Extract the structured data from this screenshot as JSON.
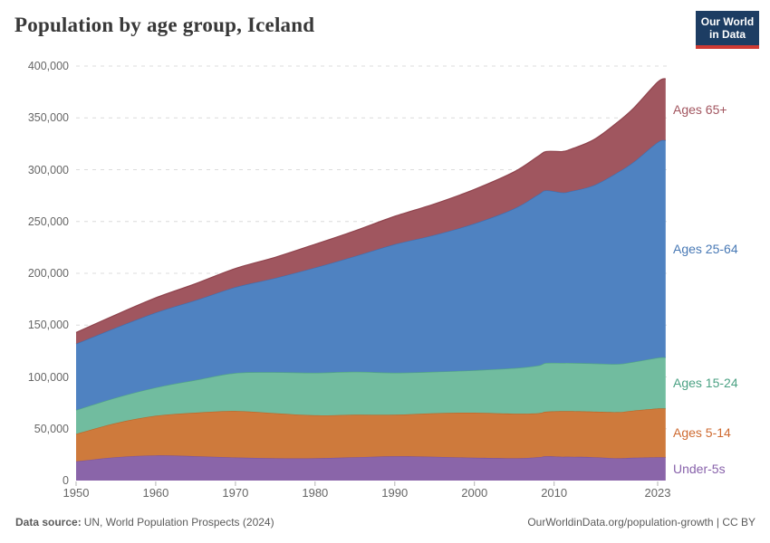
{
  "header": {
    "title": "Population by age group, Iceland",
    "logo": {
      "line1": "Our World",
      "line2": "in Data",
      "bg_color": "#1d3d63",
      "bar_color": "#cf3a33"
    }
  },
  "footer": {
    "source_label": "Data source:",
    "source_text": "UN, World Population Prospects (2024)",
    "credit_text": "OurWorldinData.org/population-growth | CC BY"
  },
  "chart_data": {
    "type": "area",
    "stacked": true,
    "title": "Population by age group, Iceland",
    "xlabel": "",
    "ylabel": "",
    "unit": "people",
    "xlim": [
      1950,
      2024
    ],
    "ylim": [
      0,
      400000
    ],
    "grid": "horizontal-dashed",
    "legend_position": "right-edge-labels",
    "x": [
      1950,
      1955,
      1960,
      1965,
      1970,
      1975,
      1980,
      1985,
      1990,
      1995,
      2000,
      2005,
      2008,
      2009,
      2011,
      2012,
      2015,
      2018,
      2020,
      2023,
      2024
    ],
    "series": [
      {
        "label": "Under-5s",
        "slug": "under-5s",
        "color": "#8a65a9",
        "line_color": "#7b539c",
        "label_color": "#8862ab",
        "values": [
          18500,
          22500,
          24300,
          23500,
          22300,
          21500,
          21500,
          22500,
          23500,
          23000,
          22000,
          21500,
          22500,
          23500,
          23000,
          23000,
          22500,
          21500,
          22000,
          22500,
          22400
        ]
      },
      {
        "label": "Ages 5-14",
        "slug": "ages-5-14",
        "color": "#ce7a3c",
        "line_color": "#bd6526",
        "label_color": "#ce6a30",
        "values": [
          26500,
          33000,
          38200,
          42000,
          44900,
          43500,
          41500,
          41000,
          40000,
          42000,
          43500,
          43000,
          42500,
          43000,
          44000,
          44000,
          44000,
          44500,
          45500,
          47000,
          47000
        ]
      },
      {
        "label": "Ages 15-24",
        "slug": "ages-15-24",
        "color": "#71bc9f",
        "line_color": "#50a584",
        "label_color": "#4ba183",
        "values": [
          23000,
          24500,
          27300,
          31500,
          36600,
          39500,
          41000,
          41500,
          40500,
          40000,
          41000,
          44000,
          46000,
          47000,
          46500,
          46500,
          46500,
          46500,
          47000,
          49000,
          49500
        ]
      },
      {
        "label": "Ages 25-64",
        "slug": "ages-25-64",
        "color": "#4f82c1",
        "line_color": "#3c6fb1",
        "label_color": "#4879b5",
        "values": [
          64000,
          67500,
          72300,
          77000,
          82800,
          91000,
          101500,
          111500,
          124000,
          132000,
          141500,
          154000,
          165000,
          166500,
          164500,
          165500,
          172000,
          185000,
          193000,
          208000,
          209500
        ]
      },
      {
        "label": "Ages 65+",
        "slug": "ages-65-plus",
        "color": "#a0565f",
        "line_color": "#8f434d",
        "label_color": "#a2555f",
        "values": [
          10900,
          12500,
          14200,
          16000,
          18000,
          20000,
          22500,
          24500,
          27000,
          30000,
          33000,
          35500,
          37000,
          37500,
          39500,
          40500,
          44000,
          48500,
          52000,
          58000,
          59500
        ]
      }
    ],
    "yticks": [
      {
        "value": 0,
        "label": "0"
      },
      {
        "value": 50000,
        "label": "50,000"
      },
      {
        "value": 100000,
        "label": "100,000"
      },
      {
        "value": 150000,
        "label": "150,000"
      },
      {
        "value": 200000,
        "label": "200,000"
      },
      {
        "value": 250000,
        "label": "250,000"
      },
      {
        "value": 300000,
        "label": "300,000"
      },
      {
        "value": 350000,
        "label": "350,000"
      },
      {
        "value": 400000,
        "label": "400,000"
      }
    ],
    "xticks": [
      {
        "year": 1950,
        "label": "1950"
      },
      {
        "year": 1960,
        "label": "1960"
      },
      {
        "year": 1970,
        "label": "1970"
      },
      {
        "year": 1980,
        "label": "1980"
      },
      {
        "year": 1990,
        "label": "1990"
      },
      {
        "year": 2000,
        "label": "2000"
      },
      {
        "year": 2010,
        "label": "2010"
      },
      {
        "year": 2023,
        "label": "2023"
      }
    ]
  }
}
